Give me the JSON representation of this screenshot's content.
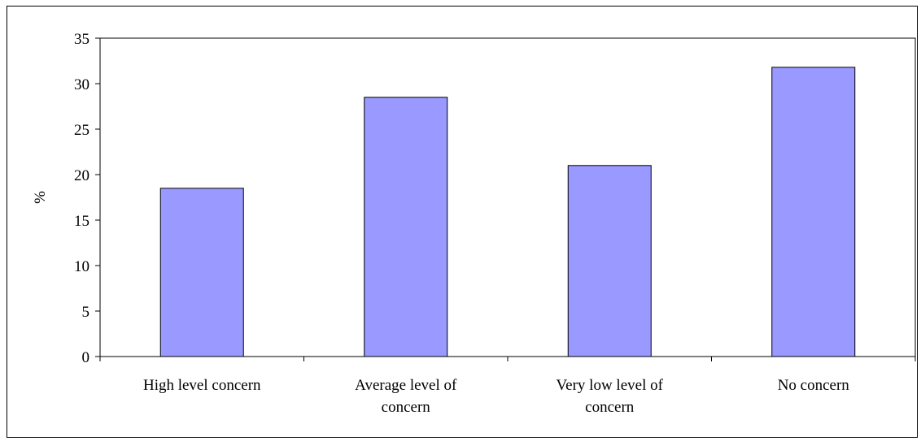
{
  "chart_data": {
    "type": "bar",
    "categories": [
      [
        "High level concern"
      ],
      [
        "Average level of",
        "concern"
      ],
      [
        "Very low level of",
        "concern"
      ],
      [
        "No concern"
      ]
    ],
    "values": [
      18.5,
      28.5,
      21,
      31.8
    ],
    "ylabel": "%",
    "xlabel": "",
    "ylim": [
      0,
      35
    ],
    "yticks": [
      0,
      5,
      10,
      15,
      20,
      25,
      30,
      35
    ],
    "bar_color": "#9999ff",
    "bar_stroke": "#000000",
    "grid": false,
    "legend": "none"
  }
}
